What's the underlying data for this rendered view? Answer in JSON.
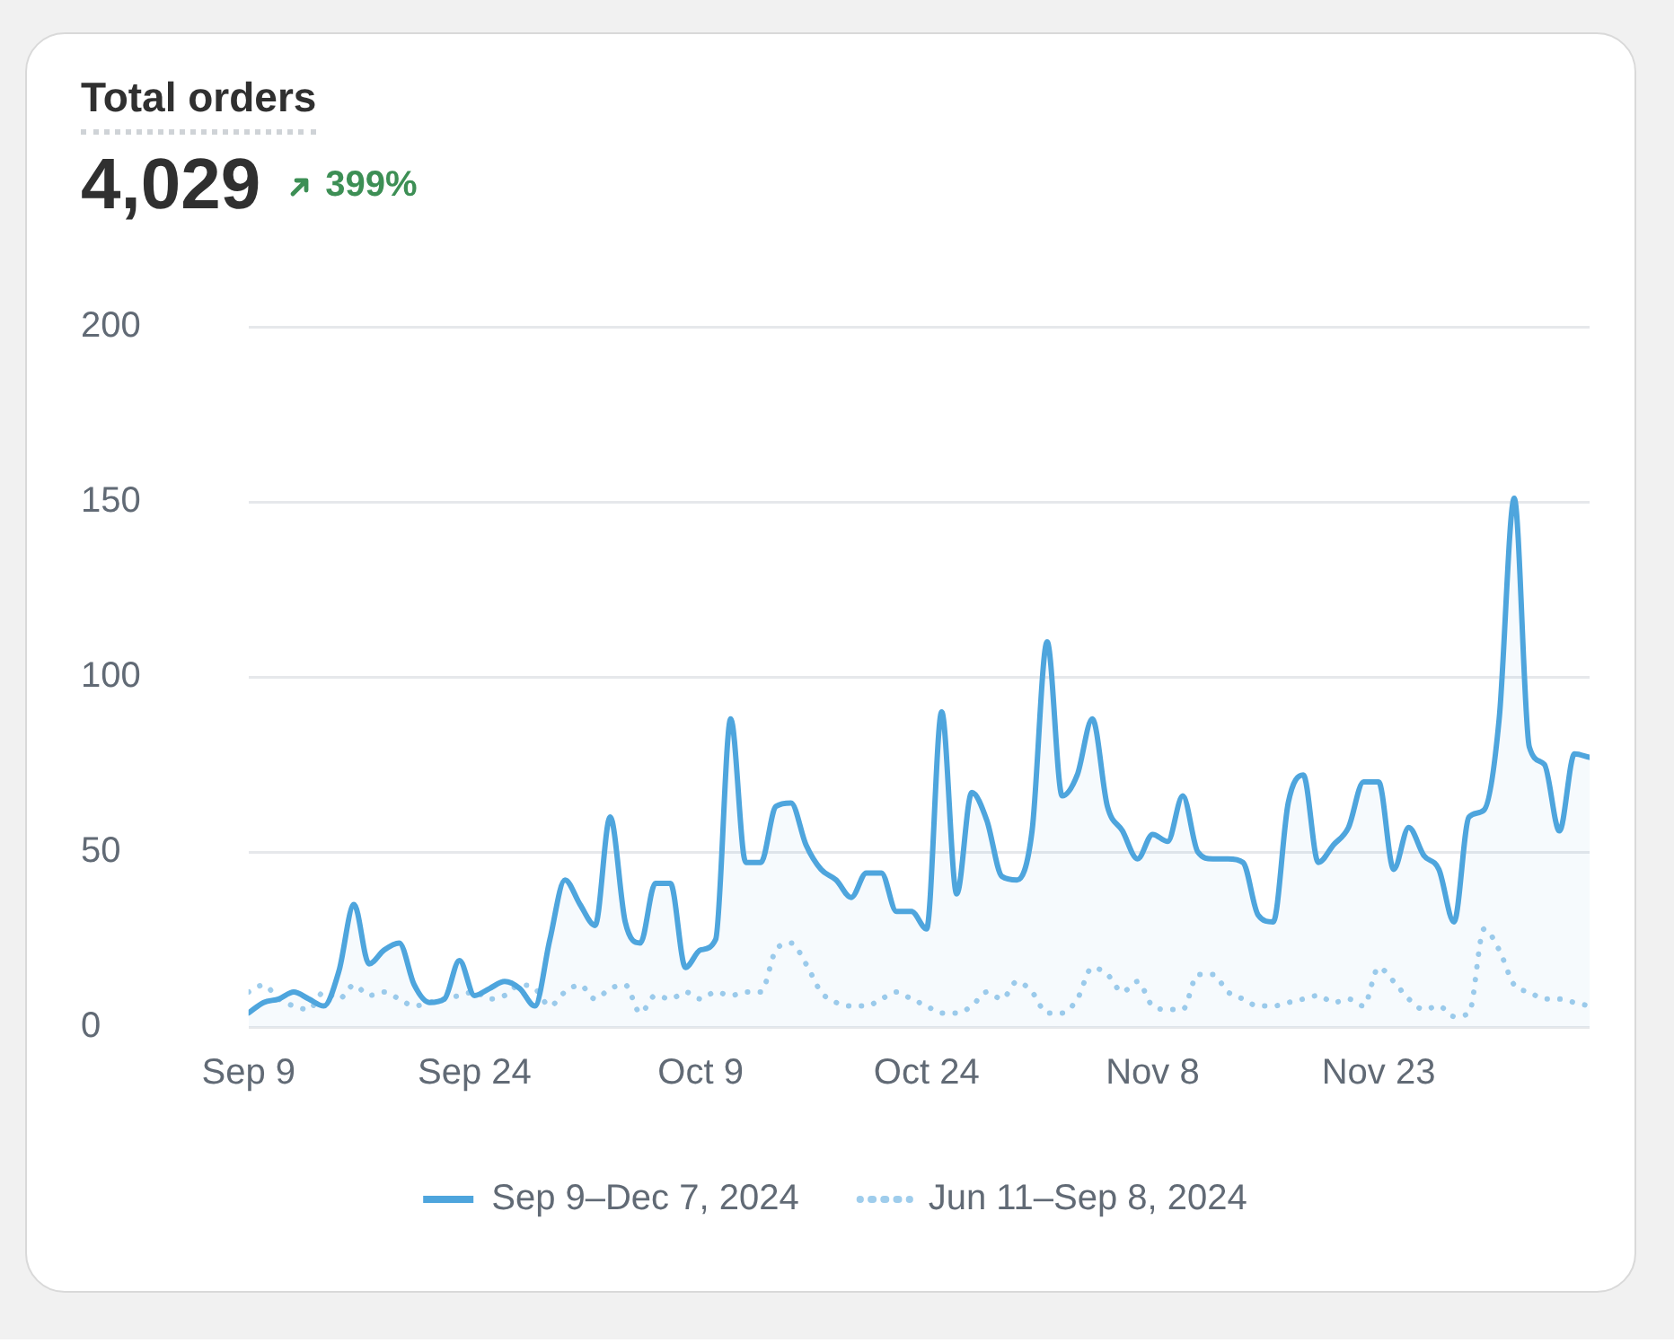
{
  "chart_data": {
    "type": "line",
    "title": "Total orders",
    "subtitle": "4,029",
    "annotations": [
      "399%"
    ],
    "x": [
      "2024-09-09",
      "2024-09-10",
      "2024-09-11",
      "2024-09-12",
      "2024-09-13",
      "2024-09-14",
      "2024-09-15",
      "2024-09-16",
      "2024-09-17",
      "2024-09-18",
      "2024-09-19",
      "2024-09-20",
      "2024-09-21",
      "2024-09-22",
      "2024-09-23",
      "2024-09-24",
      "2024-09-25",
      "2024-09-26",
      "2024-09-27",
      "2024-09-28",
      "2024-09-29",
      "2024-09-30",
      "2024-10-01",
      "2024-10-02",
      "2024-10-03",
      "2024-10-04",
      "2024-10-05",
      "2024-10-06",
      "2024-10-07",
      "2024-10-08",
      "2024-10-09",
      "2024-10-10",
      "2024-10-11",
      "2024-10-12",
      "2024-10-13",
      "2024-10-14",
      "2024-10-15",
      "2024-10-16",
      "2024-10-17",
      "2024-10-18",
      "2024-10-19",
      "2024-10-20",
      "2024-10-21",
      "2024-10-22",
      "2024-10-23",
      "2024-10-24",
      "2024-10-25",
      "2024-10-26",
      "2024-10-27",
      "2024-10-28",
      "2024-10-29",
      "2024-10-30",
      "2024-10-31",
      "2024-11-01",
      "2024-11-02",
      "2024-11-03",
      "2024-11-04",
      "2024-11-05",
      "2024-11-06",
      "2024-11-07",
      "2024-11-08",
      "2024-11-09",
      "2024-11-10",
      "2024-11-11",
      "2024-11-12",
      "2024-11-13",
      "2024-11-14",
      "2024-11-15",
      "2024-11-16",
      "2024-11-17",
      "2024-11-18",
      "2024-11-19",
      "2024-11-20",
      "2024-11-21",
      "2024-11-22",
      "2024-11-23",
      "2024-11-24",
      "2024-11-25",
      "2024-11-26",
      "2024-11-27",
      "2024-11-28",
      "2024-11-29",
      "2024-11-30",
      "2024-12-01",
      "2024-12-02",
      "2024-12-03",
      "2024-12-04",
      "2024-12-05",
      "2024-12-06",
      "2024-12-07"
    ],
    "series": [
      {
        "name": "Sep 9–Dec 7, 2024",
        "type": "area",
        "color": "#4ea5dd",
        "line_style": "solid",
        "values": [
          4,
          7,
          8,
          10,
          8,
          6,
          16,
          35,
          18,
          22,
          24,
          12,
          7,
          8,
          19,
          9,
          11,
          13,
          11,
          6,
          25,
          42,
          35,
          29,
          60,
          30,
          24,
          41,
          41,
          17,
          22,
          25,
          88,
          47,
          47,
          63,
          64,
          52,
          45,
          42,
          37,
          44,
          44,
          33,
          33,
          28,
          90,
          38,
          67,
          59,
          43,
          42,
          56,
          110,
          66,
          72,
          88,
          63,
          56,
          48,
          55,
          53,
          66,
          50,
          48,
          48,
          47,
          32,
          30,
          64,
          72,
          47,
          52,
          57,
          70,
          70,
          45,
          57,
          49,
          45,
          30,
          60,
          62,
          88,
          151,
          80,
          75,
          56,
          78,
          77
        ]
      },
      {
        "name": "Jun 11–Sep 8, 2024",
        "type": "line",
        "color": "#9fcdec",
        "line_style": "dotted",
        "values": [
          10,
          12,
          8,
          6,
          5,
          10,
          8,
          12,
          9,
          10,
          8,
          6,
          7,
          8,
          9,
          10,
          8,
          9,
          12,
          11,
          6,
          10,
          12,
          8,
          11,
          12,
          4,
          9,
          8,
          10,
          8,
          10,
          9,
          10,
          10,
          22,
          24,
          18,
          10,
          7,
          6,
          6,
          8,
          10,
          8,
          6,
          4,
          4,
          6,
          10,
          8,
          13,
          10,
          4,
          4,
          8,
          17,
          15,
          10,
          13,
          6,
          5,
          5,
          15,
          15,
          10,
          8,
          6,
          6,
          7,
          8,
          9,
          7,
          8,
          6,
          17,
          13,
          8,
          5,
          6,
          3,
          4,
          28,
          22,
          12,
          10,
          8,
          8,
          7,
          6
        ]
      }
    ],
    "xlim": [
      "2024-09-09",
      "2024-12-07"
    ],
    "xticks": [
      {
        "value": "2024-09-09",
        "label": "Sep 9"
      },
      {
        "value": "2024-09-24",
        "label": "Sep 24"
      },
      {
        "value": "2024-10-09",
        "label": "Oct 9"
      },
      {
        "value": "2024-10-24",
        "label": "Oct 24"
      },
      {
        "value": "2024-11-08",
        "label": "Nov 8"
      },
      {
        "value": "2024-11-23",
        "label": "Nov 23"
      }
    ],
    "ylim": [
      0,
      200
    ],
    "yticks": [
      0,
      50,
      100,
      150,
      200
    ],
    "grid": "y",
    "legend": "bottom",
    "marker": "none"
  }
}
